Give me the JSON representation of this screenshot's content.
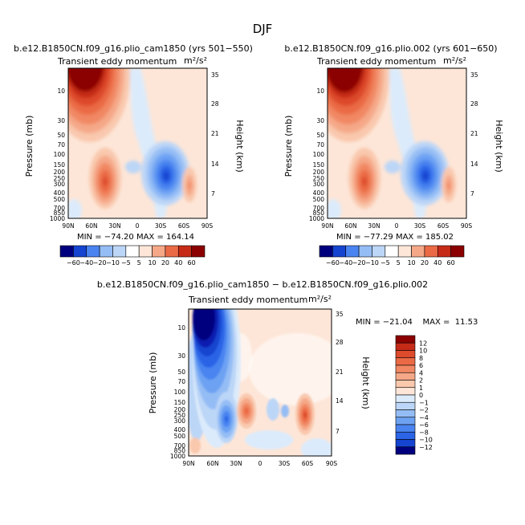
{
  "figure": {
    "title": "DJF",
    "colors": [
      "#00007f",
      "#0a1fb0",
      "#1544d0",
      "#2b64e6",
      "#4a84f0",
      "#6da2f3",
      "#95bdf5",
      "#bcd6f7",
      "#ffffff",
      "#fde6d8",
      "#f9c8ad",
      "#f5a888",
      "#f18863",
      "#ea6a45",
      "#dd4a2c",
      "#c52b17",
      "#8b0000"
    ],
    "lower_colors": [
      "#00007f",
      "#0a1fb0",
      "#1544d0",
      "#2b64e6",
      "#4a84f0",
      "#6da2f3",
      "#95bdf5",
      "#bcd6f7",
      "#dcebfb",
      "#fde6d8",
      "#f9c8ad",
      "#f5a888",
      "#f18863",
      "#ea6a45",
      "#dd4a2c",
      "#c52b17",
      "#8b0000"
    ]
  },
  "chart_data": [
    {
      "type": "heatmap",
      "title": "b.e12.B1850CN.f09_g16.plio_cam1850 (yrs 501−550)",
      "subtitle": "Transient eddy momentum",
      "units": "m²/s²",
      "xlabel": "",
      "ylabel": "Pressure (mb)",
      "ylabel_right": "Height (km)",
      "xticks": [
        "90N",
        "60N",
        "30N",
        "0",
        "30S",
        "60S",
        "90S"
      ],
      "yticks": [
        "10",
        "30",
        "50",
        "70",
        "100",
        "150",
        "200",
        "250",
        "300",
        "400",
        "500",
        "700",
        "850",
        "1000"
      ],
      "yticks_right": [
        "35",
        "28",
        "21",
        "14",
        "7"
      ],
      "ylog": true,
      "stats": "MIN = −74.20    MAX = 164.14",
      "colorbar_labels": [
        "−60",
        "−40",
        "−20",
        "−10",
        "−5",
        "5",
        "10",
        "20",
        "40",
        "60"
      ],
      "colorbar_levels": [
        -60,
        -40,
        -20,
        -10,
        -5,
        5,
        10,
        20,
        40,
        60
      ],
      "features": [
        {
          "lat": 65,
          "p": 5,
          "value": 160
        },
        {
          "lat": 30,
          "p": 250,
          "value": 60
        },
        {
          "lat": -35,
          "p": 250,
          "value": -70
        },
        {
          "lat": -62,
          "p": 300,
          "value": 25
        }
      ]
    },
    {
      "type": "heatmap",
      "title": "b.e12.B1850CN.f09_g16.plio.002 (yrs 601−650)",
      "subtitle": "Transient eddy momentum",
      "units": "m²/s²",
      "xlabel": "",
      "ylabel": "Pressure (mb)",
      "ylabel_right": "Height (km)",
      "xticks": [
        "90N",
        "60N",
        "30N",
        "0",
        "30S",
        "60S",
        "90S"
      ],
      "yticks": [
        "10",
        "30",
        "50",
        "70",
        "100",
        "150",
        "200",
        "250",
        "300",
        "400",
        "500",
        "700",
        "850",
        "1000"
      ],
      "yticks_right": [
        "35",
        "28",
        "21",
        "14",
        "7"
      ],
      "ylog": true,
      "stats": "MIN = −77.29    MAX = 185.02",
      "colorbar_labels": [
        "−60",
        "−40",
        "−20",
        "−10",
        "−5",
        "5",
        "10",
        "20",
        "40",
        "60"
      ],
      "colorbar_levels": [
        -60,
        -40,
        -20,
        -10,
        -5,
        5,
        10,
        20,
        40,
        60
      ],
      "features": [
        {
          "lat": 65,
          "p": 5,
          "value": 180
        },
        {
          "lat": 30,
          "p": 250,
          "value": 60
        },
        {
          "lat": -35,
          "p": 250,
          "value": -75
        },
        {
          "lat": -62,
          "p": 300,
          "value": 25
        }
      ]
    },
    {
      "type": "heatmap",
      "title": "b.e12.B1850CN.f09_g16.plio_cam1850 − b.e12.B1850CN.f09_g16.plio.002",
      "subtitle": "Transient eddy momentum",
      "units": "m²/s²",
      "xlabel": "",
      "ylabel": "Pressure (mb)",
      "ylabel_right": "Height (km)",
      "xticks": [
        "90N",
        "60N",
        "30N",
        "0",
        "30S",
        "60S",
        "90S"
      ],
      "yticks": [
        "10",
        "30",
        "50",
        "70",
        "100",
        "150",
        "200",
        "250",
        "300",
        "400",
        "500",
        "700",
        "850",
        "1000"
      ],
      "yticks_right": [
        "35",
        "28",
        "21",
        "14",
        "7"
      ],
      "ylog": true,
      "stats": "MIN = −21.04    MAX =  11.53",
      "colorbar_labels": [
        "12",
        "10",
        "8",
        "6",
        "4",
        "2",
        "1",
        "0",
        "−1",
        "−2",
        "−4",
        "−6",
        "−8",
        "−10",
        "−12"
      ],
      "colorbar_levels": [
        -12,
        -10,
        -8,
        -6,
        -4,
        -2,
        -1,
        0,
        1,
        2,
        4,
        6,
        8,
        10,
        12
      ],
      "features": [
        {
          "lat": 68,
          "p": 6,
          "value": -21
        },
        {
          "lat": 45,
          "p": 250,
          "value": -8
        },
        {
          "lat": 20,
          "p": 200,
          "value": 7
        },
        {
          "lat": -48,
          "p": 250,
          "value": 10
        }
      ]
    }
  ]
}
